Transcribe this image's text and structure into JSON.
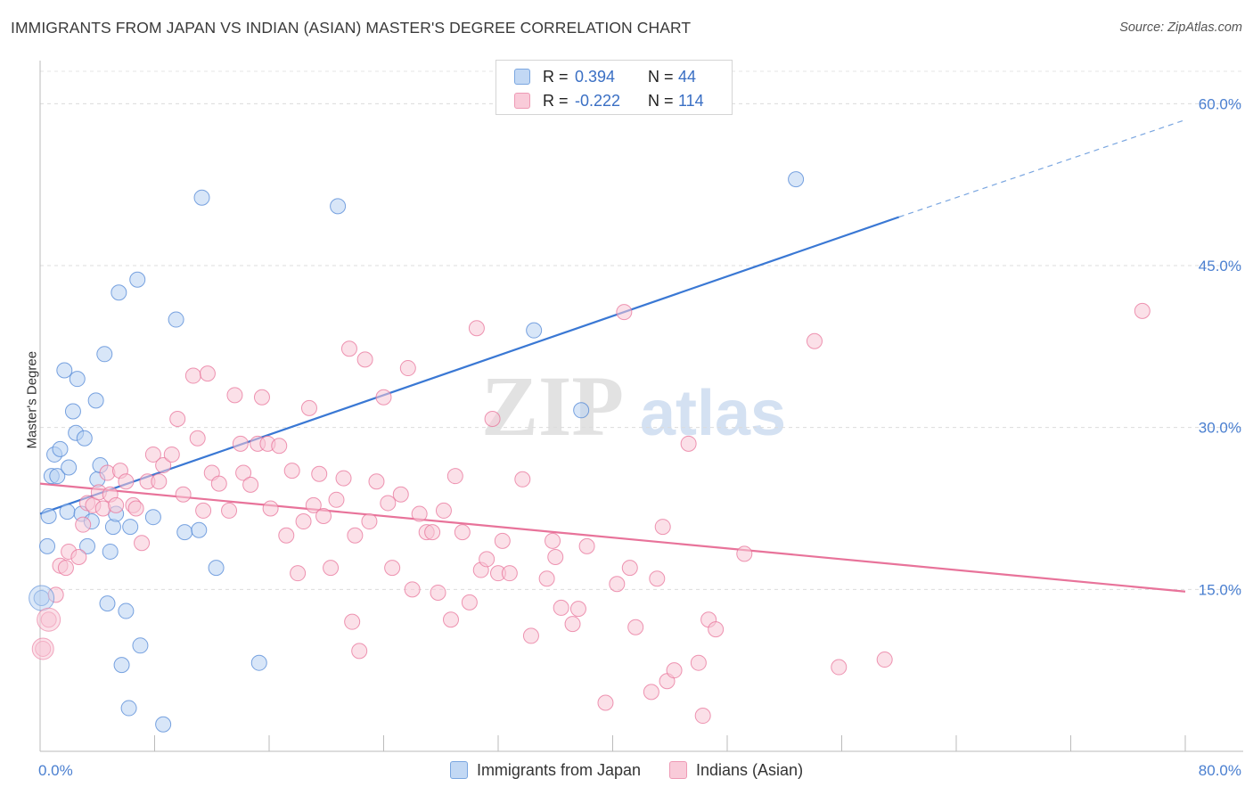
{
  "header": {
    "title": "IMMIGRANTS FROM JAPAN VS INDIAN (ASIAN) MASTER'S DEGREE CORRELATION CHART",
    "source": "Source: ZipAtlas.com"
  },
  "watermark": {
    "zip": "ZIP",
    "atlas": "atlas"
  },
  "legend_top": {
    "rows": [
      {
        "r_label": "R =",
        "r_value": "0.394",
        "n_label": "N =",
        "n_value": "44",
        "color": "#a9c8f0"
      },
      {
        "r_label": "R =",
        "r_value": "-0.222",
        "n_label": "N =",
        "n_value": "114",
        "color": "#f7b9cc"
      }
    ]
  },
  "legend_bottom": {
    "items": [
      {
        "label": "Immigrants from Japan",
        "color": "#a9c8f0"
      },
      {
        "label": "Indians (Asian)",
        "color": "#f7b9cc"
      }
    ]
  },
  "chart_data": {
    "type": "scatter",
    "title": "IMMIGRANTS FROM JAPAN VS INDIAN (ASIAN) MASTER'S DEGREE CORRELATION CHART",
    "ylabel": "Master's Degree",
    "xlabel": "",
    "xlim": [
      0,
      80
    ],
    "ylim": [
      0,
      63
    ],
    "x_tick_labels": [
      "0.0%",
      "80.0%"
    ],
    "y_ticks": [
      15,
      30,
      45,
      60
    ],
    "y_tick_labels": [
      "15.0%",
      "30.0%",
      "45.0%",
      "60.0%"
    ],
    "grid": true,
    "legend_position": "top-center",
    "series": [
      {
        "name": "Immigrants from Japan",
        "color": "#4f86d6",
        "fill": "#b8d2f2",
        "r": 0.394,
        "n": 44,
        "trend": {
          "x0": 0,
          "y0": 22.0,
          "x1": 60,
          "y1": 49.5,
          "extend_to_x": 80,
          "extend_to_y": 58.5
        },
        "points": [
          [
            0.1,
            14.2
          ],
          [
            0.5,
            19.0
          ],
          [
            0.6,
            21.8
          ],
          [
            0.8,
            25.5
          ],
          [
            1.0,
            27.5
          ],
          [
            1.2,
            25.5
          ],
          [
            1.4,
            28.0
          ],
          [
            1.7,
            35.3
          ],
          [
            1.9,
            22.2
          ],
          [
            2.0,
            26.3
          ],
          [
            2.3,
            31.5
          ],
          [
            2.5,
            29.5
          ],
          [
            2.6,
            34.5
          ],
          [
            2.9,
            22.0
          ],
          [
            3.1,
            29.0
          ],
          [
            3.3,
            19.0
          ],
          [
            3.6,
            21.3
          ],
          [
            3.9,
            32.5
          ],
          [
            4.0,
            25.2
          ],
          [
            4.2,
            26.5
          ],
          [
            4.5,
            36.8
          ],
          [
            4.7,
            13.7
          ],
          [
            4.9,
            18.5
          ],
          [
            5.1,
            20.8
          ],
          [
            5.3,
            22.0
          ],
          [
            5.5,
            42.5
          ],
          [
            5.7,
            8.0
          ],
          [
            6.0,
            13.0
          ],
          [
            6.2,
            4.0
          ],
          [
            6.3,
            20.8
          ],
          [
            6.8,
            43.7
          ],
          [
            7.0,
            9.8
          ],
          [
            7.9,
            21.7
          ],
          [
            8.6,
            2.5
          ],
          [
            9.5,
            40.0
          ],
          [
            10.1,
            20.3
          ],
          [
            11.1,
            20.5
          ],
          [
            11.3,
            51.3
          ],
          [
            12.3,
            17.0
          ],
          [
            15.3,
            8.2
          ],
          [
            20.8,
            50.5
          ],
          [
            34.5,
            39.0
          ],
          [
            37.8,
            31.6
          ],
          [
            52.8,
            53.0
          ]
        ]
      },
      {
        "name": "Indians (Asian)",
        "color": "#e8739a",
        "fill": "#f8c6d5",
        "r": -0.222,
        "n": 114,
        "trend": {
          "x0": 0,
          "y0": 24.8,
          "x1": 80,
          "y1": 14.8
        },
        "points": [
          [
            0.2,
            9.5
          ],
          [
            0.6,
            12.2
          ],
          [
            1.1,
            14.5
          ],
          [
            1.4,
            17.2
          ],
          [
            1.8,
            17.0
          ],
          [
            2.0,
            18.5
          ],
          [
            2.7,
            18.0
          ],
          [
            3.0,
            21.0
          ],
          [
            3.3,
            23.0
          ],
          [
            3.7,
            22.8
          ],
          [
            4.1,
            24.0
          ],
          [
            4.4,
            22.5
          ],
          [
            4.7,
            25.8
          ],
          [
            4.9,
            23.8
          ],
          [
            5.3,
            22.8
          ],
          [
            5.6,
            26.0
          ],
          [
            6.0,
            25.0
          ],
          [
            6.5,
            22.8
          ],
          [
            6.7,
            22.5
          ],
          [
            7.1,
            19.3
          ],
          [
            7.5,
            25.0
          ],
          [
            7.9,
            27.5
          ],
          [
            8.3,
            25.0
          ],
          [
            8.6,
            26.5
          ],
          [
            9.2,
            27.5
          ],
          [
            9.6,
            30.8
          ],
          [
            10.0,
            23.8
          ],
          [
            10.7,
            34.8
          ],
          [
            11.0,
            29.0
          ],
          [
            11.4,
            22.3
          ],
          [
            11.7,
            35.0
          ],
          [
            12.0,
            25.8
          ],
          [
            12.5,
            24.8
          ],
          [
            13.2,
            22.3
          ],
          [
            13.6,
            33.0
          ],
          [
            14.0,
            28.5
          ],
          [
            14.2,
            25.8
          ],
          [
            14.7,
            24.7
          ],
          [
            15.2,
            28.5
          ],
          [
            15.5,
            32.8
          ],
          [
            15.9,
            28.5
          ],
          [
            16.1,
            22.5
          ],
          [
            16.7,
            28.3
          ],
          [
            17.2,
            20.0
          ],
          [
            17.6,
            26.0
          ],
          [
            18.0,
            16.5
          ],
          [
            18.4,
            21.3
          ],
          [
            18.8,
            31.8
          ],
          [
            19.1,
            22.8
          ],
          [
            19.5,
            25.7
          ],
          [
            19.8,
            21.8
          ],
          [
            20.3,
            17.0
          ],
          [
            20.7,
            23.3
          ],
          [
            21.2,
            25.3
          ],
          [
            21.6,
            37.3
          ],
          [
            21.8,
            12.0
          ],
          [
            22.0,
            20.0
          ],
          [
            22.3,
            9.3
          ],
          [
            22.7,
            36.3
          ],
          [
            23.0,
            21.3
          ],
          [
            23.5,
            25.0
          ],
          [
            24.0,
            32.8
          ],
          [
            24.3,
            23.0
          ],
          [
            24.6,
            17.0
          ],
          [
            25.2,
            23.8
          ],
          [
            25.7,
            35.5
          ],
          [
            26.0,
            15.0
          ],
          [
            26.5,
            22.0
          ],
          [
            27.0,
            20.3
          ],
          [
            27.4,
            20.3
          ],
          [
            27.8,
            14.7
          ],
          [
            28.2,
            22.3
          ],
          [
            28.7,
            12.2
          ],
          [
            29.0,
            25.5
          ],
          [
            29.5,
            20.3
          ],
          [
            30.0,
            13.8
          ],
          [
            30.5,
            39.2
          ],
          [
            30.8,
            16.8
          ],
          [
            31.2,
            17.8
          ],
          [
            31.6,
            30.8
          ],
          [
            32.0,
            16.5
          ],
          [
            32.3,
            19.5
          ],
          [
            32.8,
            16.5
          ],
          [
            33.7,
            25.2
          ],
          [
            34.3,
            10.7
          ],
          [
            35.4,
            16.0
          ],
          [
            35.8,
            19.5
          ],
          [
            36.0,
            18.0
          ],
          [
            36.4,
            13.3
          ],
          [
            37.2,
            11.8
          ],
          [
            37.6,
            13.2
          ],
          [
            38.2,
            19.0
          ],
          [
            39.5,
            4.5
          ],
          [
            40.3,
            15.5
          ],
          [
            40.8,
            40.7
          ],
          [
            41.2,
            17.0
          ],
          [
            41.6,
            11.5
          ],
          [
            42.7,
            5.5
          ],
          [
            43.1,
            16.0
          ],
          [
            43.5,
            20.8
          ],
          [
            43.8,
            6.5
          ],
          [
            44.3,
            7.5
          ],
          [
            45.3,
            28.5
          ],
          [
            46.0,
            8.2
          ],
          [
            46.3,
            3.3
          ],
          [
            46.7,
            12.2
          ],
          [
            47.2,
            11.3
          ],
          [
            49.2,
            18.3
          ],
          [
            54.1,
            38.0
          ],
          [
            55.8,
            7.8
          ],
          [
            59.0,
            8.5
          ],
          [
            77.0,
            40.8
          ]
        ]
      }
    ]
  }
}
